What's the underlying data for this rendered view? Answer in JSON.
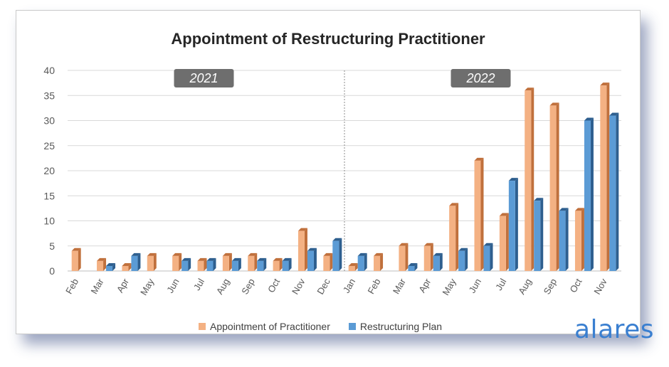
{
  "colors": {
    "series1_face": "#F4B183",
    "series1_side": "#C0703C",
    "series2_face": "#5B9BD5",
    "series2_side": "#2E5F8F",
    "year_badge": "#6E6E6E",
    "brand": "#3A7FD0"
  },
  "brand": "alares",
  "chart_data": {
    "type": "bar",
    "title": "Appointment of Restructuring Practitioner",
    "xlabel": "",
    "ylabel": "",
    "ylim": [
      0,
      40
    ],
    "yticks": [
      0,
      5,
      10,
      15,
      20,
      25,
      30,
      35,
      40
    ],
    "grid": true,
    "legend_position": "bottom",
    "year_labels": [
      "2021",
      "2022"
    ],
    "categories": [
      "Feb",
      "Mar",
      "Apr",
      "May",
      "Jun",
      "Jul",
      "Aug",
      "Sep",
      "Oct",
      "Nov",
      "Dec",
      "Jan",
      "Feb",
      "Mar",
      "Apr",
      "May",
      "Jun",
      "Jul",
      "Aug",
      "Sep",
      "Oct",
      "Nov"
    ],
    "series": [
      {
        "name": "Appointment of Practitioner",
        "values": [
          4,
          2,
          1,
          3,
          3,
          2,
          3,
          3,
          2,
          8,
          3,
          1,
          3,
          5,
          5,
          13,
          22,
          11,
          36,
          33,
          12,
          37
        ]
      },
      {
        "name": "Restructuring Plan",
        "values": [
          0,
          1,
          3,
          0,
          2,
          2,
          2,
          2,
          2,
          4,
          6,
          3,
          0,
          1,
          3,
          4,
          5,
          18,
          14,
          12,
          30,
          31
        ]
      }
    ]
  }
}
